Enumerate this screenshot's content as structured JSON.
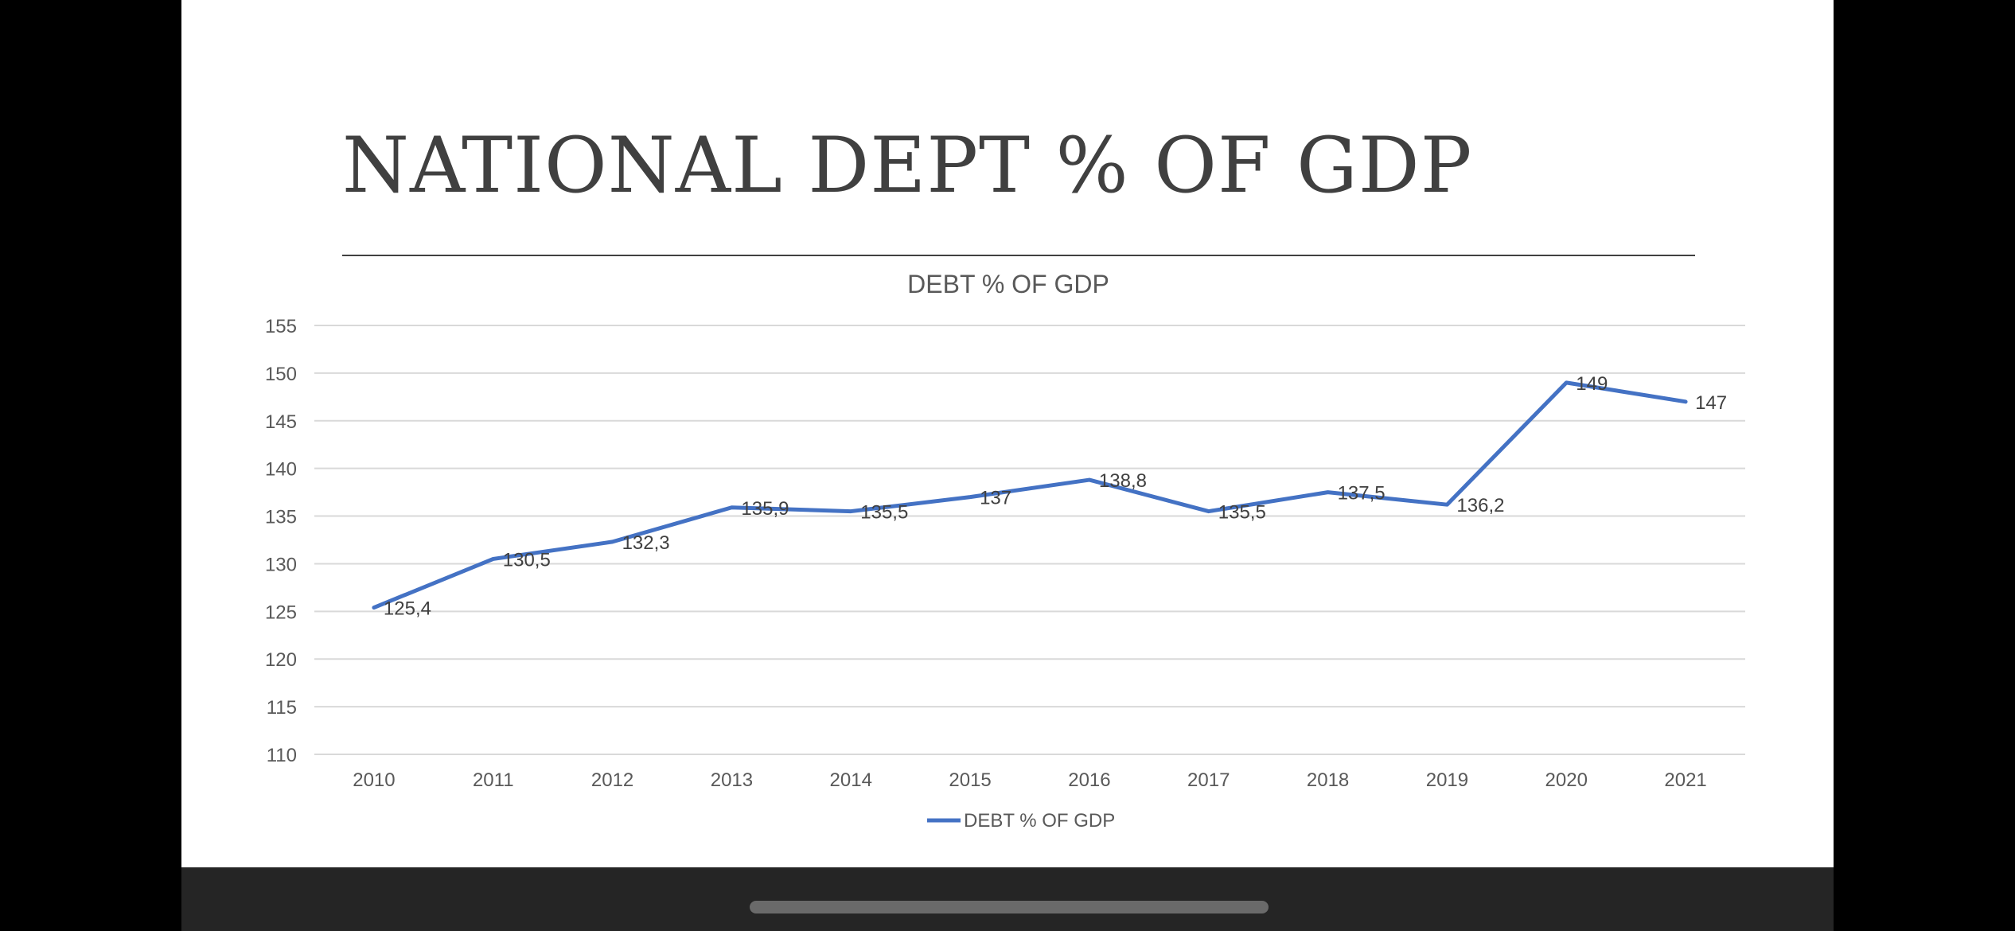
{
  "slide": {
    "title": "NATIONAL DEPT % OF GDP"
  },
  "chart_data": {
    "type": "line",
    "title": "DEBT % OF GDP",
    "xlabel": "",
    "ylabel": "",
    "categories": [
      "2010",
      "2011",
      "2012",
      "2013",
      "2014",
      "2015",
      "2016",
      "2017",
      "2018",
      "2019",
      "2020",
      "2021"
    ],
    "series": [
      {
        "name": "DEBT % OF GDP",
        "values": [
          125.4,
          130.5,
          132.3,
          135.9,
          135.5,
          137,
          138.8,
          135.5,
          137.5,
          136.2,
          149,
          147
        ],
        "labels": [
          "125,4",
          "130,5",
          "132,3",
          "135,9",
          "135,5",
          "137",
          "138,8",
          "135,5",
          "137,5",
          "136,2",
          "149",
          "147"
        ],
        "color": "#4472C4"
      }
    ],
    "ylim": [
      110,
      155
    ],
    "yticks": [
      "110",
      "115",
      "120",
      "125",
      "130",
      "135",
      "140",
      "145",
      "150",
      "155"
    ],
    "grid": true,
    "legend_position": "bottom"
  },
  "colors": {
    "slide_background": "#ffffff",
    "title_text": "#404040",
    "gridline": "#d9d9d9",
    "axis_text": "#595959",
    "data_label_text": "#404040",
    "bottom_bar": "#252525",
    "home_indicator": "#6a6a6a"
  }
}
